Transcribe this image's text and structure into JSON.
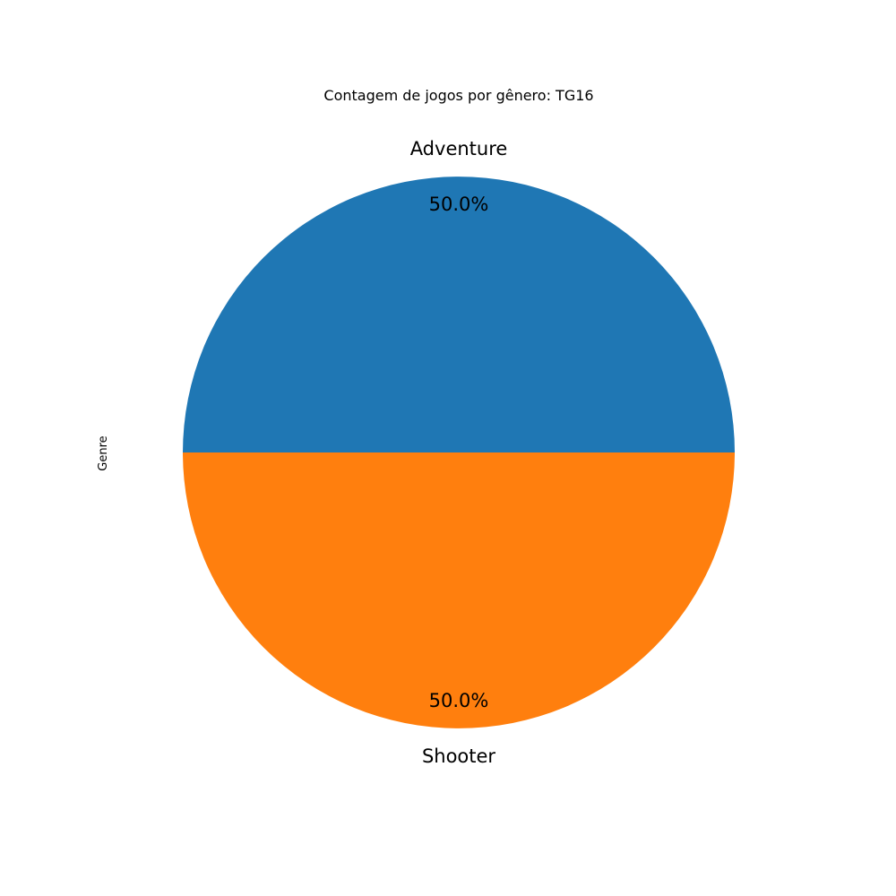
{
  "chart_data": {
    "type": "pie",
    "title": "Contagem de jogos por gênero: TG16",
    "ylabel": "Genre",
    "categories": [
      "Adventure",
      "Shooter"
    ],
    "values": [
      1,
      1
    ],
    "percent_labels": [
      "50.0%",
      "50.0%"
    ],
    "colors": [
      "#1f77b4",
      "#ff7f0e"
    ],
    "start_angle_deg": 0,
    "direction": "counterclockwise",
    "legend": "none"
  }
}
